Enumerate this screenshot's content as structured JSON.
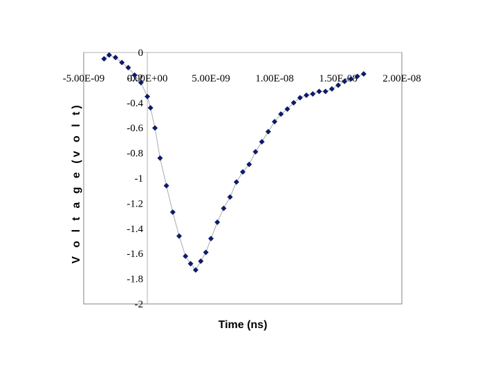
{
  "chart_data": {
    "type": "scatter",
    "title": "",
    "xlabel": "Time (ns)",
    "ylabel": "V o l t a g e  (v o l t)",
    "xlim": [
      -5e-09,
      2e-08
    ],
    "ylim": [
      -2,
      0
    ],
    "x_ticks": [
      {
        "value": -5e-09,
        "label": "-5.00E-09"
      },
      {
        "value": 0,
        "label": "0.00E+00"
      },
      {
        "value": 5e-09,
        "label": "5.00E-09"
      },
      {
        "value": 1e-08,
        "label": "1.00E-08"
      },
      {
        "value": 1.5e-08,
        "label": "1.50E-08"
      },
      {
        "value": 2e-08,
        "label": "2.00E-08"
      }
    ],
    "y_ticks": [
      {
        "value": 0,
        "label": "0"
      },
      {
        "value": -0.2,
        "label": "-0.2"
      },
      {
        "value": -0.4,
        "label": "-0.4"
      },
      {
        "value": -0.6,
        "label": "-0.6"
      },
      {
        "value": -0.8,
        "label": "-0.8"
      },
      {
        "value": -1,
        "label": "-1"
      },
      {
        "value": -1.2,
        "label": "-1.2"
      },
      {
        "value": -1.4,
        "label": "-1.4"
      },
      {
        "value": -1.6,
        "label": "-1.6"
      },
      {
        "value": -1.8,
        "label": "-1.8"
      },
      {
        "value": -2,
        "label": "-2"
      }
    ],
    "grid": false,
    "legend": "none",
    "marker": "diamond",
    "marker_color": "#0d1a6b",
    "line_color": "#a9a9a9",
    "series": [
      {
        "x": [
          -3.4e-09,
          -3e-09,
          -2.5e-09,
          -2e-09,
          -1.5e-09,
          -1e-09,
          -5e-10,
          0.0,
          2.5e-10,
          6e-10,
          1e-09,
          1.5e-09,
          2e-09,
          2.5e-09,
          3e-09,
          3.4e-09,
          3.8e-09,
          4.2e-09,
          4.6e-09,
          5e-09,
          5.5e-09,
          6e-09,
          6.5e-09,
          7e-09,
          7.5e-09,
          8e-09,
          8.5e-09,
          9e-09,
          9.5e-09,
          1e-08,
          1.05e-08,
          1.1e-08,
          1.15e-08,
          1.2e-08,
          1.25e-08,
          1.3e-08,
          1.35e-08,
          1.4e-08,
          1.45e-08,
          1.5e-08,
          1.55e-08,
          1.6e-08,
          1.65e-08,
          1.7e-08
        ],
        "y": [
          -0.05,
          -0.02,
          -0.04,
          -0.08,
          -0.12,
          -0.18,
          -0.24,
          -0.35,
          -0.44,
          -0.6,
          -0.84,
          -1.06,
          -1.27,
          -1.46,
          -1.62,
          -1.68,
          -1.73,
          -1.66,
          -1.59,
          -1.48,
          -1.35,
          -1.24,
          -1.15,
          -1.03,
          -0.95,
          -0.89,
          -0.79,
          -0.71,
          -0.63,
          -0.55,
          -0.49,
          -0.45,
          -0.4,
          -0.36,
          -0.34,
          -0.33,
          -0.31,
          -0.31,
          -0.29,
          -0.26,
          -0.23,
          -0.21,
          -0.19,
          -0.17
        ]
      }
    ]
  }
}
